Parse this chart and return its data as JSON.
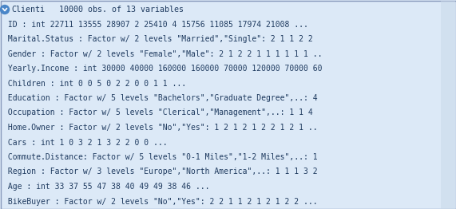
{
  "bg_color": "#dce9f7",
  "text_color": "#1e3a5f",
  "font_family": "monospace",
  "title_line": {
    "name": "Clienti",
    "info": "          10000 obs. of 13 variables"
  },
  "rows": [
    " ID : int 22711 13555 28907 2 25410 4 15756 11085 17974 21008 ...",
    " Marital.Status : Factor w/ 2 levels \"Married\",\"Single\": 2 1 1 2 2 ",
    " Gender : Factor w/ 2 levels \"Female\",\"Male\": 2 1 2 2 1 1 1 1 1 1 ..",
    " Yearly.Income : int 30000 40000 160000 160000 70000 120000 70000 60",
    " Children : int 0 0 5 0 2 2 0 0 1 1 ...",
    " Education : Factor w/ 5 levels \"Bachelors\",\"Graduate Degree\",..: 4",
    " Occupation : Factor w/ 5 levels \"Clerical\",\"Management\",..: 1 1 4",
    " Home.Owner : Factor w/ 2 levels \"No\",\"Yes\": 1 2 1 2 1 2 2 1 2 1 ..",
    " Cars : int 1 0 3 2 1 3 2 2 0 0 ...",
    " Commute.Distance: Factor w/ 5 levels \"0-1 Miles\",\"1-2 Miles\",..: 1",
    " Region : Factor w/ 3 levels \"Europe\",\"North America\",..: 1 1 1 3 2",
    " Age : int 33 37 55 47 38 40 49 49 38 46 ...",
    " BikeBuyer : Factor w/ 2 levels \"No\",\"Yes\": 2 2 1 1 2 1 2 1 2 2 ..."
  ],
  "font_size": 7.0,
  "title_font_size": 7.2,
  "icon_color": "#4a86c8",
  "border_color": "#8899bb",
  "right_strip_color": "#c8d8e8"
}
